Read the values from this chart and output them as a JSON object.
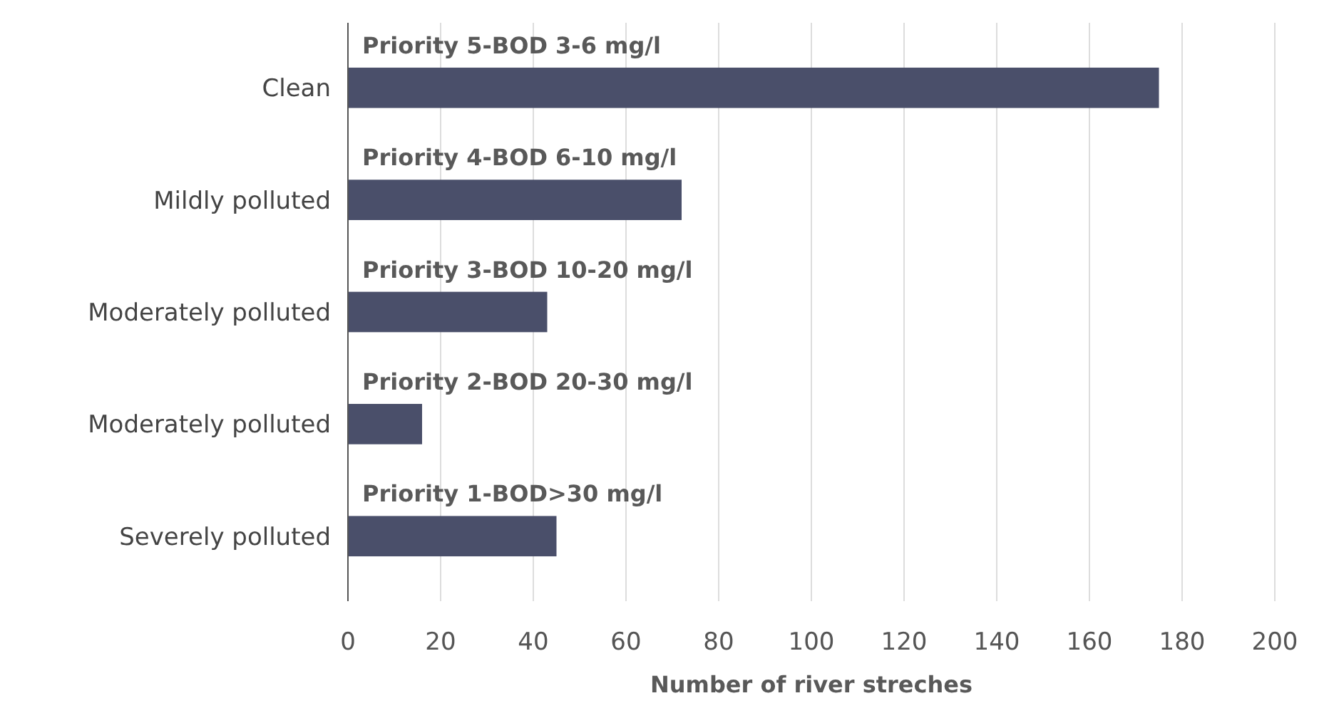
{
  "chart_data": {
    "type": "bar",
    "orientation": "horizontal",
    "categories": [
      "Clean",
      "Mildly polluted",
      "Moderately polluted",
      "Moderately polluted",
      "Severely polluted"
    ],
    "values": [
      175,
      72,
      43,
      16,
      45
    ],
    "color": "#4a4f6a",
    "xlim": [
      0,
      200
    ],
    "xticks": [
      0,
      20,
      40,
      60,
      80,
      100,
      120,
      140,
      160,
      180,
      200
    ],
    "grid": "x",
    "xlabel": "Number of river streches",
    "annotations": [
      "Priority 5-BOD 3-6 mg/l",
      "Priority 4-BOD 6-10 mg/l",
      "Priority 3-BOD 10-20 mg/l",
      "Priority 2-BOD 20-30 mg/l",
      "Priority 1-BOD>30 mg/l"
    ]
  }
}
